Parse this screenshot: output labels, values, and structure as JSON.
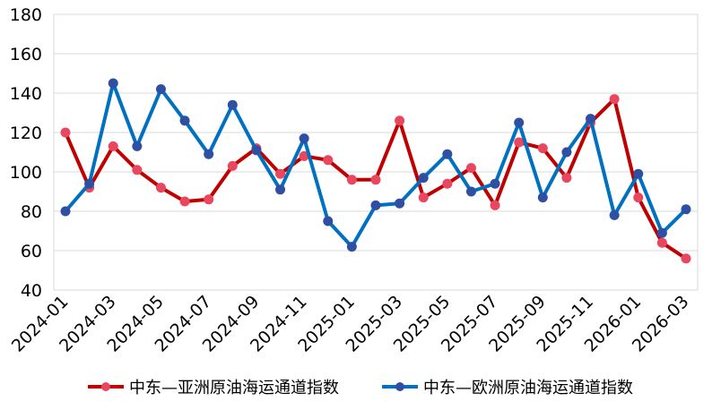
{
  "chart_data": {
    "type": "line",
    "title": "",
    "xlabel": "",
    "ylabel": "",
    "ylim": [
      40,
      180
    ],
    "yticks": [
      40,
      60,
      80,
      100,
      120,
      140,
      160,
      180
    ],
    "grid": true,
    "legend_position": "bottom",
    "categories": [
      "2024-01",
      "2024-02",
      "2024-03",
      "2024-04",
      "2024-05",
      "2024-06",
      "2024-07",
      "2024-08",
      "2024-09",
      "2024-10",
      "2024-11",
      "2024-12",
      "2025-01",
      "2025-02",
      "2025-03",
      "2025-04",
      "2025-05",
      "2025-06",
      "2025-07",
      "2025-08",
      "2025-09",
      "2025-10",
      "2025-11",
      "2025-12",
      "2026-01",
      "2026-02",
      "2026-03"
    ],
    "tick_labels": [
      "2024-01",
      "2024-03",
      "2024-05",
      "2024-07",
      "2024-09",
      "2024-11",
      "2025-01",
      "2025-03",
      "2025-05",
      "2025-07",
      "2025-09",
      "2025-11",
      "2026-01",
      "2026-03"
    ],
    "series": [
      {
        "name": "中东—亚洲原油海运通道指数",
        "color": "#C00000",
        "marker_color": "#E8475F",
        "values": [
          120,
          92,
          113,
          101,
          92,
          85,
          86,
          103,
          112,
          99,
          108,
          106,
          96,
          96,
          126,
          87,
          94,
          102,
          83,
          115,
          112,
          97,
          125,
          137,
          87,
          64,
          56
        ]
      },
      {
        "name": "中东—欧洲原油海运通道指数",
        "color": "#0070C0",
        "marker_color": "#2F4FA2",
        "values": [
          80,
          94,
          145,
          113,
          142,
          126,
          109,
          134,
          111,
          91,
          117,
          75,
          62,
          83,
          84,
          97,
          109,
          90,
          94,
          125,
          87,
          110,
          127,
          78,
          99,
          69,
          81
        ]
      }
    ]
  }
}
